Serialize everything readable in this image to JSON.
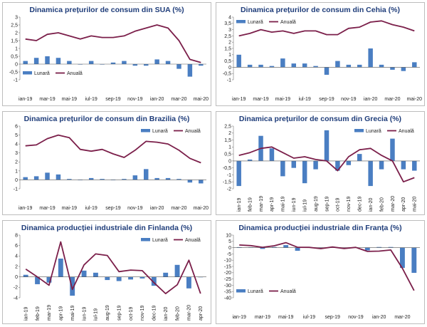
{
  "colors": {
    "bar": "#4a7ec2",
    "line": "#7b1f4a",
    "title": "#1f3d7a"
  },
  "chart_data": [
    {
      "type": "bar+line",
      "title": "Dinamica prețurilor de consum din SUA (%)",
      "legend": {
        "bar": "Lunară",
        "line": "Anuală"
      },
      "legend_position": "bottom-left",
      "ylim": [
        -1,
        3
      ],
      "yticks": [
        -1,
        -0.5,
        0,
        0.5,
        1,
        1.5,
        2,
        2.5,
        3
      ],
      "ytick_labels": [
        "-1",
        "-0,5",
        "0",
        "0,5",
        "1",
        "1,5",
        "2",
        "2,5",
        "3"
      ],
      "xtick_step": 2,
      "categories": [
        "ian-19",
        "feb-19",
        "mar-19",
        "apr-19",
        "mai-19",
        "iun-19",
        "iul-19",
        "aug-19",
        "sep-19",
        "oct-19",
        "nov-19",
        "dec-19",
        "ian-20",
        "feb-20",
        "mar-20",
        "apr-20",
        "mai-20"
      ],
      "bars": [
        0.2,
        0.4,
        0.5,
        0.4,
        0.2,
        0.0,
        0.2,
        0.0,
        0.1,
        0.2,
        -0.1,
        -0.1,
        0.3,
        0.2,
        -0.3,
        -0.8,
        -0.1
      ],
      "line": [
        1.6,
        1.5,
        1.9,
        2.0,
        1.8,
        1.6,
        1.8,
        1.7,
        1.7,
        1.8,
        2.1,
        2.3,
        2.5,
        2.3,
        1.5,
        0.3,
        0.1
      ]
    },
    {
      "type": "bar+line",
      "title": "Dinamica prețurilor de consum din Cehia (%)",
      "legend": {
        "bar": "Lunară",
        "line": "Anuală"
      },
      "legend_position": "top-left",
      "ylim": [
        -1,
        4
      ],
      "yticks": [
        -1,
        -0.5,
        0,
        0.5,
        1,
        1.5,
        2,
        2.5,
        3,
        3.5,
        4
      ],
      "ytick_labels": [
        "-1",
        "-0,5",
        "0",
        "0,5",
        "1",
        "1,5",
        "2",
        "2,5",
        "3",
        "3,5",
        "4"
      ],
      "xtick_step": 2,
      "categories": [
        "ian-19",
        "feb-19",
        "mar-19",
        "apr-19",
        "mai-19",
        "iun-19",
        "iul-19",
        "aug-19",
        "sep-19",
        "oct-19",
        "nov-19",
        "dec-19",
        "ian-20",
        "feb-20",
        "mar-20",
        "apr-20",
        "mai-20"
      ],
      "bars": [
        1.0,
        0.2,
        0.2,
        0.1,
        0.7,
        0.3,
        0.3,
        0.1,
        -0.6,
        0.5,
        0.2,
        0.2,
        1.5,
        0.2,
        -0.2,
        -0.3,
        0.4
      ],
      "line": [
        2.5,
        2.7,
        3.0,
        2.8,
        2.9,
        2.7,
        2.9,
        2.9,
        2.6,
        2.6,
        3.1,
        3.2,
        3.6,
        3.7,
        3.4,
        3.2,
        2.9
      ]
    },
    {
      "type": "bar+line",
      "title": "Dinamica prețurilor de consum din Brazilia (%)",
      "legend": {
        "bar": "Lunară",
        "line": "Anuală"
      },
      "legend_position": "top-right",
      "ylim": [
        -1,
        6
      ],
      "yticks": [
        -1,
        0,
        1,
        2,
        3,
        4,
        5,
        6
      ],
      "ytick_labels": [
        "-1",
        "0",
        "1",
        "2",
        "3",
        "4",
        "5",
        "6"
      ],
      "xtick_step": 2,
      "categories": [
        "ian-19",
        "feb-19",
        "mar-19",
        "apr-19",
        "mai-19",
        "iun-19",
        "iul-19",
        "aug-19",
        "sep-19",
        "oct-19",
        "nov-19",
        "dec-19",
        "ian-20",
        "feb-20",
        "mar-20",
        "apr-20",
        "mai-20"
      ],
      "bars": [
        0.3,
        0.4,
        0.8,
        0.6,
        0.1,
        0.0,
        0.2,
        0.1,
        0.0,
        0.1,
        0.5,
        1.2,
        0.2,
        0.2,
        0.1,
        -0.3,
        -0.4
      ],
      "line": [
        3.8,
        3.9,
        4.6,
        5.0,
        4.7,
        3.4,
        3.2,
        3.4,
        2.9,
        2.5,
        3.3,
        4.3,
        4.2,
        4.0,
        3.3,
        2.4,
        1.9
      ]
    },
    {
      "type": "bar+line",
      "title": "Dinamica prețurilor de consum din Grecia (%)",
      "legend": {
        "bar": "Lunară",
        "line": "Anuală"
      },
      "legend_position": "top-right",
      "ylim": [
        -2,
        2.5
      ],
      "yticks": [
        -2,
        -1.5,
        -1,
        -0.5,
        0,
        0.5,
        1,
        1.5,
        2,
        2.5
      ],
      "ytick_labels": [
        "-2",
        "-1,5",
        "-1",
        "-0,5",
        "0",
        "0,5",
        "1",
        "1,5",
        "2",
        "2,5"
      ],
      "xtick_step": 1,
      "categories": [
        "ian-19",
        "feb-19",
        "mar-19",
        "apr-19",
        "mai-19",
        "iun-19",
        "iul-19",
        "aug-19",
        "sep-19",
        "oct-19",
        "nov-19",
        "dec-19",
        "ian-20",
        "feb-20",
        "mar-20",
        "apr-20",
        "mai-20"
      ],
      "bars": [
        -1.8,
        0.1,
        1.8,
        0.9,
        -1.1,
        -0.5,
        -1.6,
        -0.6,
        2.2,
        -0.7,
        -0.3,
        0.5,
        -1.8,
        -0.6,
        1.6,
        -0.6,
        -0.7
      ],
      "line": [
        0.4,
        0.6,
        0.9,
        1.0,
        0.6,
        0.2,
        0.3,
        0.1,
        0.0,
        -0.7,
        0.3,
        0.8,
        0.9,
        0.4,
        0.0,
        -1.5,
        -1.2
      ]
    },
    {
      "type": "bar+line",
      "title": "Dinamica producției industriale din Finlanda (%)",
      "legend": {
        "bar": "Lunară",
        "line": "Anuală"
      },
      "legend_position": "top-right",
      "ylim": [
        -4,
        8
      ],
      "yticks": [
        -4,
        -2,
        0,
        2,
        4,
        6,
        8
      ],
      "ytick_labels": [
        "-4",
        "-2",
        "0",
        "2",
        "4",
        "6",
        "8"
      ],
      "xtick_step": 1,
      "categories": [
        "ian-19",
        "feb-19",
        "mar-19",
        "apr-19",
        "mai-19",
        "iun-19",
        "iul-19",
        "aug-19",
        "sep-19",
        "oct-19",
        "nov-19",
        "dec-19",
        "ian-20",
        "feb-20",
        "mar-20",
        "apr-20"
      ],
      "bars": [
        0.4,
        -1.4,
        -1.1,
        3.5,
        -3.6,
        1.2,
        0.8,
        -0.6,
        -0.8,
        -0.5,
        -0.3,
        -1.7,
        0.8,
        2.3,
        -2.2,
        0.0
      ],
      "line": [
        1.5,
        0.0,
        -1.6,
        6.7,
        -2.4,
        2.3,
        4.4,
        4.1,
        1.0,
        1.3,
        1.2,
        -1.1,
        -3.2,
        -1.5,
        3.2,
        -3.2
      ]
    },
    {
      "type": "bar+line",
      "title": "Dinamica producției industriale din Franța (%)",
      "legend": {
        "bar": "Lunară",
        "line": "Anuală"
      },
      "legend_position": "bottom-left",
      "ylim": [
        -40,
        10
      ],
      "yticks": [
        -40,
        -35,
        -30,
        -25,
        -20,
        -15,
        -10,
        -5,
        0,
        5,
        10
      ],
      "ytick_labels": [
        "-40",
        "-35",
        "-30",
        "-25",
        "-20",
        "-15",
        "-10",
        "-5",
        "0",
        "5",
        "10"
      ],
      "xtick_step": 2,
      "categories": [
        "ian-19",
        "feb-19",
        "mar-19",
        "apr-19",
        "mai-19",
        "iun-19",
        "iul-19",
        "aug-19",
        "sep-19",
        "oct-19",
        "nov-19",
        "dec-19",
        "ian-20",
        "feb-20",
        "mar-20",
        "apr-20"
      ],
      "bars": [
        0.4,
        0.2,
        -1.0,
        0.5,
        2.0,
        -2.5,
        0.4,
        -0.5,
        0.7,
        -0.3,
        0.2,
        -2.2,
        0.5,
        0.5,
        -16.2,
        -20.1
      ],
      "line": [
        2.1,
        1.6,
        0.3,
        1.5,
        4.0,
        0.3,
        0.2,
        -0.8,
        0.5,
        -0.7,
        0.2,
        -3.0,
        -2.8,
        -1.9,
        -16.5,
        -34.2
      ]
    }
  ]
}
